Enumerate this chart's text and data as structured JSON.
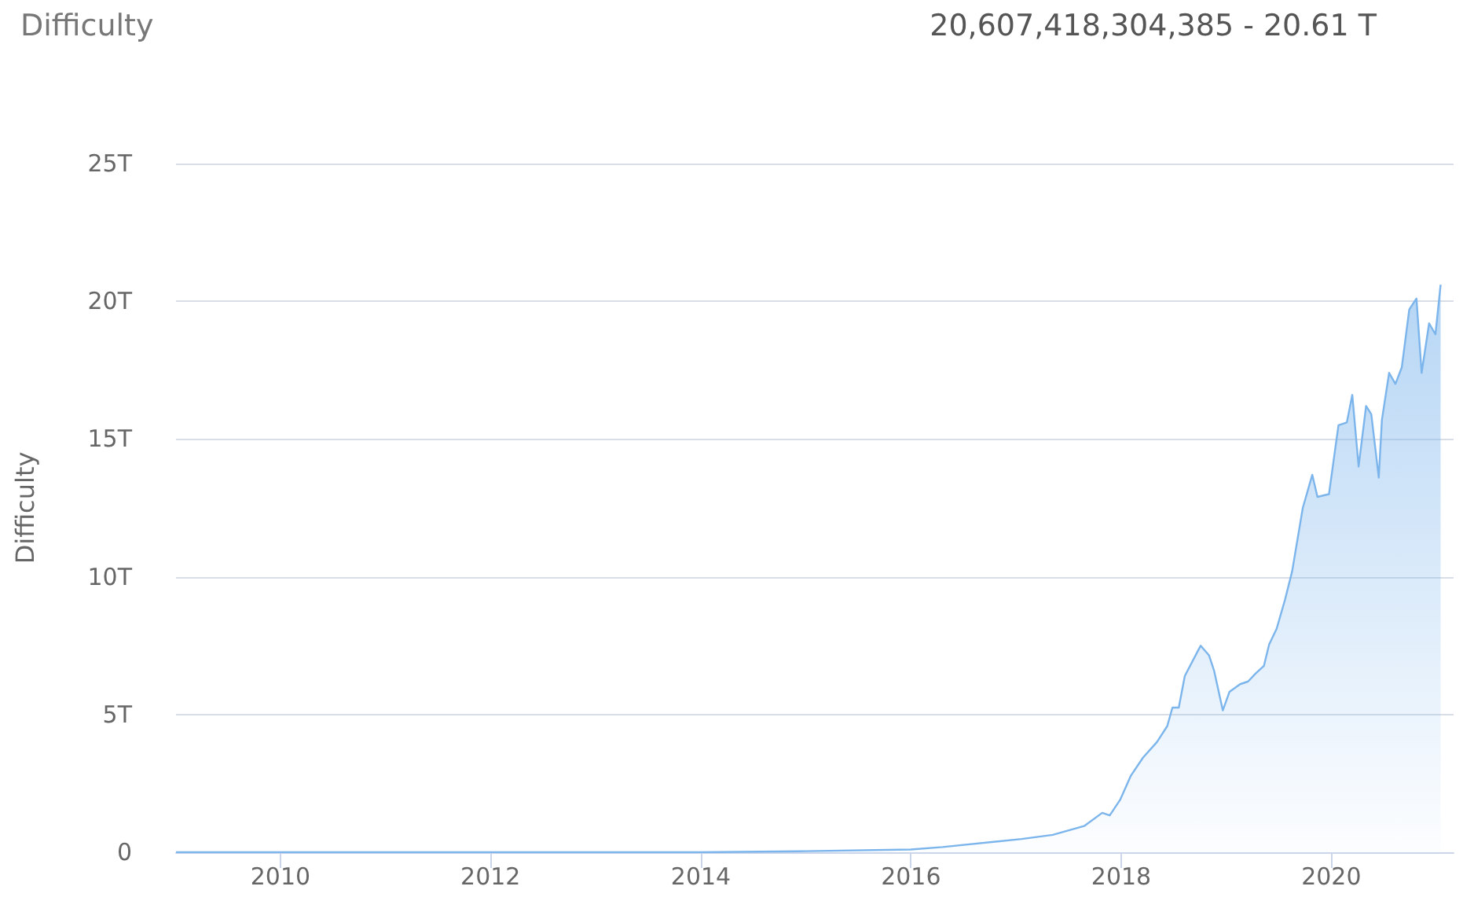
{
  "chart_data": {
    "type": "area",
    "title": "Difficulty",
    "subtitle": "20,607,418,304,385 - 20.61 T",
    "ylabel": "Difficulty",
    "x": [
      "2009-01-03",
      "2011-01-01",
      "2013-01-01",
      "2014-01-01",
      "2015-01-01",
      "2016-01-01",
      "2016-04-20",
      "2017-01-20",
      "2017-05-08",
      "2017-08-25",
      "2017-10-27",
      "2017-11-22",
      "2017-12-28",
      "2018-02-03",
      "2018-03-18",
      "2018-05-05",
      "2018-06-10",
      "2018-06-28",
      "2018-07-20",
      "2018-08-10",
      "2018-10-04",
      "2018-11-02",
      "2018-11-20",
      "2018-12-20",
      "2019-01-12",
      "2019-02-18",
      "2019-03-18",
      "2019-04-13",
      "2019-05-12",
      "2019-05-30",
      "2019-06-25",
      "2019-07-24",
      "2019-08-18",
      "2019-09-24",
      "2019-10-27",
      "2019-11-14",
      "2019-12-24",
      "2020-01-26",
      "2020-02-24",
      "2020-03-14",
      "2020-04-05",
      "2020-05-01",
      "2020-05-19",
      "2020-06-14",
      "2020-06-25",
      "2020-07-20",
      "2020-08-11",
      "2020-09-02",
      "2020-09-28",
      "2020-10-23",
      "2020-11-10",
      "2020-12-06",
      "2020-12-28",
      "2021-01-15"
    ],
    "series": [
      {
        "color": "#7cb5ec",
        "values": [
          0,
          0,
          0,
          0,
          0.04,
          0.1,
          0.19,
          0.48,
          0.63,
          0.95,
          1.43,
          1.34,
          1.9,
          2.77,
          3.44,
          4.0,
          4.58,
          5.25,
          5.25,
          6.4,
          7.5,
          7.15,
          6.58,
          5.15,
          5.82,
          6.1,
          6.2,
          6.49,
          6.77,
          7.54,
          8.11,
          9.16,
          10.2,
          12.5,
          13.7,
          12.9,
          13.0,
          15.5,
          15.6,
          16.6,
          14.0,
          16.2,
          15.9,
          13.6,
          15.7,
          17.4,
          17.0,
          17.6,
          19.7,
          20.1,
          17.4,
          19.2,
          18.8,
          20.6
        ]
      }
    ],
    "xlim": [
      "2009-01-03",
      "2021-03-01"
    ],
    "xticks": [
      "2010",
      "2012",
      "2014",
      "2016",
      "2018",
      "2020"
    ],
    "ylim": [
      0,
      25
    ],
    "yticks": [
      0,
      {
        "value": 5,
        "label": "5T"
      },
      {
        "value": 10,
        "label": "10T"
      },
      {
        "value": 15,
        "label": "15T"
      },
      {
        "value": 20,
        "label": "20T"
      },
      {
        "value": 25,
        "label": "25T"
      }
    ],
    "grid": "y",
    "marker": "none"
  }
}
